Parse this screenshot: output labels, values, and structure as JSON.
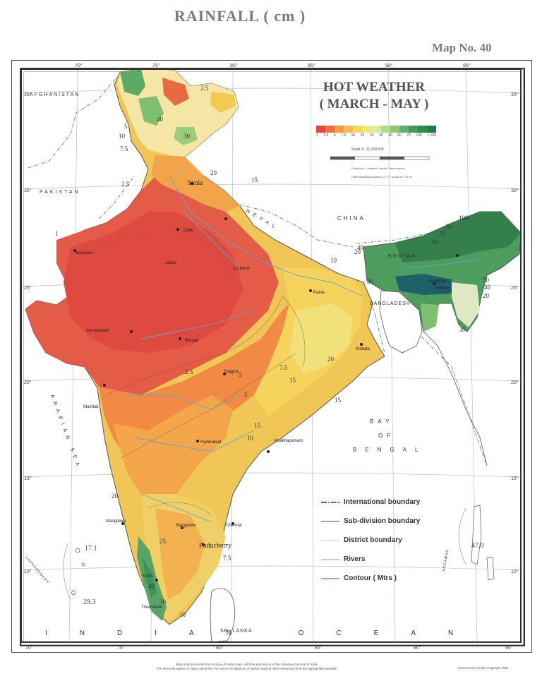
{
  "page_title": "RAINFALL ( cm )",
  "map_number": "Map No. 40",
  "map_title_line1": "HOT WEATHER",
  "map_title_line2": "( MARCH - MAY )",
  "scale_bar": {
    "classes": [
      "1",
      "2.5",
      "5",
      "7.5",
      "10",
      "15",
      "20",
      "30",
      "40",
      "60",
      "75",
      "100",
      "> 100"
    ],
    "colors": [
      "#e8453c",
      "#ef6e3f",
      "#f39a45",
      "#f7bb4b",
      "#f6d75a",
      "#efe77a",
      "#dfe9a6",
      "#b9d98a",
      "#92c77a",
      "#64b06a",
      "#3f9a5c",
      "#2f8a50",
      "#237a45"
    ]
  },
  "scale_text": "Scale 1 : 11,000,000",
  "projection_text": "Projection : Lambert Conical Orthomorphic",
  "projection_text2": "(With standard parallels 12° 17' N and 32° 13' N)",
  "legend": [
    {
      "label": "International boundary",
      "style": "dash-dot",
      "color": "#333333"
    },
    {
      "label": "Sub-division boundary",
      "style": "solid",
      "color": "#444444"
    },
    {
      "label": "District boundary",
      "style": "thin",
      "color": "#888888"
    },
    {
      "label": "Rivers",
      "style": "solid",
      "color": "#5aa7d6"
    },
    {
      "label": "Contour ( Mtrs )",
      "style": "solid",
      "color": "#b03030"
    }
  ],
  "country_labels": {
    "afghanistan": "AFGHANISTAN",
    "pakistan": "PAKISTAN",
    "china": "CHINA",
    "nepal": "NEPAL",
    "bhutan": "BHUTAN",
    "bangladesh": "BANGLADESH",
    "sri_lanka": "SRI LANKA",
    "arabian_sea": "ARABIAN SEA",
    "bay_of_bengal_1": "BAY",
    "bay_of_bengal_2": "OF",
    "bay_of_bengal_3": "BENGAL",
    "indian_ocean": "INDIAN OCEAN",
    "lakshadweep": "LAKSHADWEEP",
    "andaman": "ANDAMAN"
  },
  "places": {
    "simla": "Simla",
    "puducherry": "Puducherry",
    "mumbai": "Mumbai",
    "chennai": "Chennai",
    "kolkata": "Kolkata",
    "delhi": "Delhi",
    "bhopal": "Bhopal",
    "hyderabad": "Hyderabad",
    "bangalore": "Bangalore",
    "jaipur": "Jaipur",
    "ahmedabad": "Ahmedabad",
    "nagpur": "Nagpur",
    "patna": "Patna",
    "guwahati": "Guwahati",
    "shillong": "Shillong",
    "lucknow": "Lucknow",
    "jaisalmer": "Jaisalmer",
    "visakhapatnam": "Visakhapatnam",
    "mangalore": "Mangalore",
    "kochi": "Kochi",
    "trivandrum": "Trivandrum"
  },
  "special_values": {
    "lakshadweep_north": "17.1",
    "lakshadweep_south": "29.3",
    "andaman_value": "47.0"
  },
  "isohyet_labels": [
    "30",
    "40",
    "2.5",
    "5",
    "10",
    "7.5",
    "20",
    "15",
    "100",
    "75",
    "50",
    "60",
    "1",
    "2.5",
    "20",
    "40",
    "30",
    "10",
    "5",
    "15",
    "20",
    "15",
    "2.5",
    "7.5",
    "20",
    "40",
    "30",
    "50",
    "15",
    "10",
    "5",
    "7.5",
    "10",
    "20",
    "40",
    "30",
    "25"
  ],
  "lat_labels": [
    "35°",
    "30°",
    "25°",
    "20°",
    "15°",
    "10°"
  ],
  "lon_labels": [
    "70°",
    "75°",
    "80°",
    "85°",
    "90°",
    "95°"
  ],
  "footer_line1": "Base map produced from Survey of India maps, with the permission of the Surveyor General of India.",
  "footer_line2": "The territorial waters of India extend into the sea to the distance of twelve nautical miles measured from the appropriate baseline.",
  "copyright": "Government of India Copyright 1996"
}
